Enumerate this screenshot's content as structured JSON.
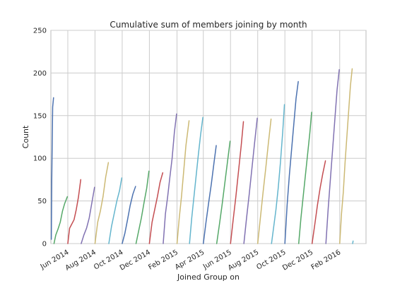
{
  "chart_data": {
    "type": "line",
    "title": "Cumulative sum of members joining by month",
    "xlabel": "Joined Group on",
    "ylabel": "Count",
    "ylim": [
      0,
      250
    ],
    "yticks": [
      "0",
      "50",
      "100",
      "150",
      "200",
      "250"
    ],
    "xlim": [
      "2014-04-24",
      "2016-03-31"
    ],
    "xticks": [
      {
        "date": "2014-06-01",
        "label": "Jun 2014"
      },
      {
        "date": "2014-08-01",
        "label": "Aug 2014"
      },
      {
        "date": "2014-10-01",
        "label": "Oct 2014"
      },
      {
        "date": "2014-12-01",
        "label": "Dec 2014"
      },
      {
        "date": "2015-02-01",
        "label": "Feb 2015"
      },
      {
        "date": "2015-04-01",
        "label": "Apr 2015"
      },
      {
        "date": "2015-06-01",
        "label": "Jun 2015"
      },
      {
        "date": "2015-08-01",
        "label": "Aug 2015"
      },
      {
        "date": "2015-10-01",
        "label": "Oct 2015"
      },
      {
        "date": "2015-12-01",
        "label": "Dec 2015"
      },
      {
        "date": "2016-02-01",
        "label": "Feb 2016"
      }
    ],
    "grid": true,
    "series": [
      {
        "color": "#4c72b0",
        "x": [
          "2014-04-25",
          "2014-04-26",
          "2014-04-27",
          "2014-04-28",
          "2014-04-30"
        ],
        "y": [
          5,
          75,
          120,
          160,
          171
        ]
      },
      {
        "color": "#55a868",
        "x": [
          "2014-05-01",
          "2014-05-05",
          "2014-05-10",
          "2014-05-15",
          "2014-05-20",
          "2014-05-25",
          "2014-05-31"
        ],
        "y": [
          0,
          10,
          17,
          25,
          38,
          47,
          55
        ]
      },
      {
        "color": "#c44e52",
        "x": [
          "2014-06-01",
          "2014-06-05",
          "2014-06-10",
          "2014-06-15",
          "2014-06-20",
          "2014-06-25",
          "2014-06-30"
        ],
        "y": [
          0,
          18,
          23,
          28,
          40,
          55,
          75
        ]
      },
      {
        "color": "#8172b2",
        "x": [
          "2014-07-01",
          "2014-07-07",
          "2014-07-13",
          "2014-07-19",
          "2014-07-25",
          "2014-07-31"
        ],
        "y": [
          0,
          10,
          18,
          30,
          48,
          66
        ]
      },
      {
        "color": "#ccb974",
        "x": [
          "2014-08-01",
          "2014-08-07",
          "2014-08-13",
          "2014-08-19",
          "2014-08-25",
          "2014-08-31"
        ],
        "y": [
          0,
          25,
          38,
          55,
          78,
          95
        ]
      },
      {
        "color": "#64b5cd",
        "x": [
          "2014-09-01",
          "2014-09-07",
          "2014-09-13",
          "2014-09-19",
          "2014-09-25",
          "2014-09-30"
        ],
        "y": [
          0,
          20,
          35,
          50,
          62,
          77
        ]
      },
      {
        "color": "#4c72b0",
        "x": [
          "2014-10-01",
          "2014-10-07",
          "2014-10-13",
          "2014-10-19",
          "2014-10-25",
          "2014-10-31"
        ],
        "y": [
          0,
          12,
          28,
          45,
          58,
          67
        ]
      },
      {
        "color": "#55a868",
        "x": [
          "2014-11-01",
          "2014-11-07",
          "2014-11-13",
          "2014-11-19",
          "2014-11-25",
          "2014-11-30"
        ],
        "y": [
          0,
          15,
          30,
          48,
          65,
          85
        ]
      },
      {
        "color": "#c44e52",
        "x": [
          "2014-12-01",
          "2014-12-07",
          "2014-12-13",
          "2014-12-19",
          "2014-12-25",
          "2014-12-31"
        ],
        "y": [
          0,
          25,
          40,
          55,
          72,
          83
        ]
      },
      {
        "color": "#8172b2",
        "x": [
          "2015-01-01",
          "2015-01-06",
          "2015-01-11",
          "2015-01-16",
          "2015-01-21",
          "2015-01-26",
          "2015-01-31"
        ],
        "y": [
          0,
          35,
          55,
          78,
          100,
          130,
          152
        ]
      },
      {
        "color": "#ccb974",
        "x": [
          "2015-02-01",
          "2015-02-06",
          "2015-02-11",
          "2015-02-16",
          "2015-02-21",
          "2015-02-28"
        ],
        "y": [
          0,
          30,
          55,
          85,
          115,
          144
        ]
      },
      {
        "color": "#64b5cd",
        "x": [
          "2015-03-01",
          "2015-03-06",
          "2015-03-11",
          "2015-03-16",
          "2015-03-21",
          "2015-03-26",
          "2015-03-31"
        ],
        "y": [
          0,
          30,
          55,
          80,
          105,
          128,
          148
        ]
      },
      {
        "color": "#4c72b0",
        "x": [
          "2015-04-01",
          "2015-04-07",
          "2015-04-13",
          "2015-04-19",
          "2015-04-25",
          "2015-04-30"
        ],
        "y": [
          0,
          25,
          48,
          70,
          95,
          115
        ]
      },
      {
        "color": "#55a868",
        "x": [
          "2015-05-01",
          "2015-05-07",
          "2015-05-13",
          "2015-05-19",
          "2015-05-25",
          "2015-05-31"
        ],
        "y": [
          0,
          22,
          45,
          70,
          95,
          120
        ]
      },
      {
        "color": "#c44e52",
        "x": [
          "2015-06-01",
          "2015-06-07",
          "2015-06-13",
          "2015-06-19",
          "2015-06-25",
          "2015-06-30"
        ],
        "y": [
          0,
          28,
          55,
          85,
          115,
          143
        ]
      },
      {
        "color": "#8172b2",
        "x": [
          "2015-07-01",
          "2015-07-07",
          "2015-07-13",
          "2015-07-19",
          "2015-07-25",
          "2015-07-31"
        ],
        "y": [
          0,
          30,
          58,
          88,
          118,
          147
        ]
      },
      {
        "color": "#ccb974",
        "x": [
          "2015-08-01",
          "2015-08-07",
          "2015-08-13",
          "2015-08-19",
          "2015-08-25",
          "2015-08-31"
        ],
        "y": [
          0,
          30,
          60,
          88,
          118,
          146
        ]
      },
      {
        "color": "#64b5cd",
        "x": [
          "2015-09-01",
          "2015-09-06",
          "2015-09-11",
          "2015-09-16",
          "2015-09-21",
          "2015-09-26",
          "2015-09-30"
        ],
        "y": [
          0,
          20,
          40,
          65,
          95,
          130,
          163
        ]
      },
      {
        "color": "#4c72b0",
        "x": [
          "2015-10-01",
          "2015-10-06",
          "2015-10-11",
          "2015-10-16",
          "2015-10-21",
          "2015-10-26",
          "2015-10-31"
        ],
        "y": [
          0,
          45,
          80,
          110,
          140,
          170,
          190
        ]
      },
      {
        "color": "#55a868",
        "x": [
          "2015-11-01",
          "2015-11-06",
          "2015-11-11",
          "2015-11-16",
          "2015-11-21",
          "2015-11-26",
          "2015-11-30"
        ],
        "y": [
          0,
          30,
          55,
          80,
          105,
          130,
          154
        ]
      },
      {
        "color": "#c44e52",
        "x": [
          "2015-12-01",
          "2015-12-07",
          "2015-12-13",
          "2015-12-19",
          "2015-12-25",
          "2015-12-31"
        ],
        "y": [
          0,
          22,
          45,
          65,
          82,
          97
        ]
      },
      {
        "color": "#8172b2",
        "x": [
          "2016-01-01",
          "2016-01-06",
          "2016-01-11",
          "2016-01-16",
          "2016-01-21",
          "2016-01-26",
          "2016-01-31"
        ],
        "y": [
          0,
          40,
          75,
          110,
          145,
          180,
          204
        ]
      },
      {
        "color": "#ccb974",
        "x": [
          "2016-02-01",
          "2016-02-05",
          "2016-02-09",
          "2016-02-13",
          "2016-02-17",
          "2016-02-21",
          "2016-02-25",
          "2016-02-29"
        ],
        "y": [
          0,
          35,
          60,
          95,
          125,
          155,
          185,
          205
        ]
      },
      {
        "color": "#64b5cd",
        "x": [
          "2016-03-01",
          "2016-03-02"
        ],
        "y": [
          0,
          3
        ]
      }
    ]
  }
}
